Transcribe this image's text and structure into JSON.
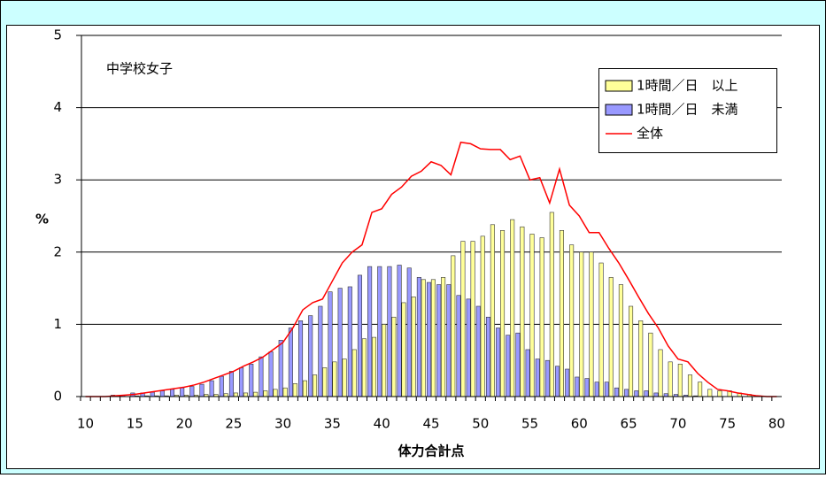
{
  "chart_data": {
    "type": "bar",
    "annotation": "中学校女子",
    "ylabel": "%",
    "xlabel": "体力合計点",
    "x": [
      10,
      11,
      12,
      13,
      14,
      15,
      16,
      17,
      18,
      19,
      20,
      21,
      22,
      23,
      24,
      25,
      26,
      27,
      28,
      29,
      30,
      31,
      32,
      33,
      34,
      35,
      36,
      37,
      38,
      39,
      40,
      41,
      42,
      43,
      44,
      45,
      46,
      47,
      48,
      49,
      50,
      51,
      52,
      53,
      54,
      55,
      56,
      57,
      58,
      59,
      60,
      61,
      62,
      63,
      64,
      65,
      66,
      67,
      68,
      69,
      70,
      71,
      72,
      73,
      74,
      75,
      76,
      77,
      78,
      79,
      80
    ],
    "series": [
      {
        "name": "1時間／日　以上",
        "type": "bar",
        "color": "#ffff99",
        "values": [
          0,
          0,
          0,
          0,
          0,
          0.01,
          0.01,
          0.01,
          0.01,
          0.02,
          0.02,
          0.02,
          0.03,
          0.03,
          0.04,
          0.05,
          0.05,
          0.06,
          0.08,
          0.1,
          0.12,
          0.18,
          0.22,
          0.3,
          0.4,
          0.48,
          0.52,
          0.65,
          0.8,
          0.82,
          1.0,
          1.1,
          1.3,
          1.38,
          1.62,
          1.62,
          1.65,
          1.95,
          2.15,
          2.15,
          2.22,
          2.38,
          2.3,
          2.45,
          2.35,
          2.25,
          2.2,
          2.55,
          2.3,
          2.1,
          2.0,
          2.0,
          1.85,
          1.65,
          1.55,
          1.25,
          1.05,
          0.88,
          0.65,
          0.48,
          0.45,
          0.3,
          0.2,
          0.1,
          0.08,
          0.08,
          0.05,
          0.03,
          0.01,
          0,
          0
        ]
      },
      {
        "name": "1時間／日　未満",
        "type": "bar",
        "color": "#9999ff",
        "values": [
          0,
          0,
          0,
          0.02,
          0.02,
          0.05,
          0.05,
          0.06,
          0.08,
          0.1,
          0.12,
          0.14,
          0.17,
          0.22,
          0.28,
          0.35,
          0.4,
          0.45,
          0.55,
          0.62,
          0.78,
          0.95,
          1.05,
          1.12,
          1.25,
          1.45,
          1.5,
          1.52,
          1.68,
          1.8,
          1.8,
          1.8,
          1.82,
          1.78,
          1.65,
          1.58,
          1.55,
          1.55,
          1.4,
          1.35,
          1.25,
          1.1,
          0.95,
          0.85,
          0.88,
          0.65,
          0.52,
          0.5,
          0.42,
          0.38,
          0.27,
          0.25,
          0.2,
          0.2,
          0.12,
          0.1,
          0.08,
          0.08,
          0.05,
          0.04,
          0.03,
          0.02,
          0.01,
          0,
          0,
          0,
          0,
          0,
          0,
          0,
          0
        ]
      },
      {
        "name": "全体",
        "type": "line",
        "color": "#ff0000",
        "values": [
          0,
          0,
          0,
          0.01,
          0.02,
          0.03,
          0.05,
          0.07,
          0.09,
          0.11,
          0.13,
          0.16,
          0.2,
          0.25,
          0.3,
          0.35,
          0.42,
          0.48,
          0.55,
          0.65,
          0.75,
          0.95,
          1.2,
          1.3,
          1.35,
          1.6,
          1.85,
          2.0,
          2.1,
          2.55,
          2.6,
          2.8,
          2.9,
          3.05,
          3.12,
          3.25,
          3.2,
          3.07,
          3.52,
          3.5,
          3.43,
          3.42,
          3.42,
          3.28,
          3.33,
          3.0,
          3.03,
          2.68,
          3.15,
          2.65,
          2.5,
          2.27,
          2.27,
          2.05,
          1.85,
          1.62,
          1.38,
          1.15,
          0.95,
          0.7,
          0.52,
          0.48,
          0.32,
          0.2,
          0.1,
          0.08,
          0.05,
          0.03,
          0.01,
          0,
          0
        ]
      }
    ],
    "xlim": [
      9.5,
      80.5
    ],
    "xticks": [
      10,
      15,
      20,
      25,
      30,
      35,
      40,
      45,
      50,
      55,
      60,
      65,
      70,
      75,
      80
    ],
    "ylim": [
      0,
      5
    ],
    "yticks": [
      0,
      1,
      2,
      3,
      4,
      5
    ],
    "grid": true
  }
}
